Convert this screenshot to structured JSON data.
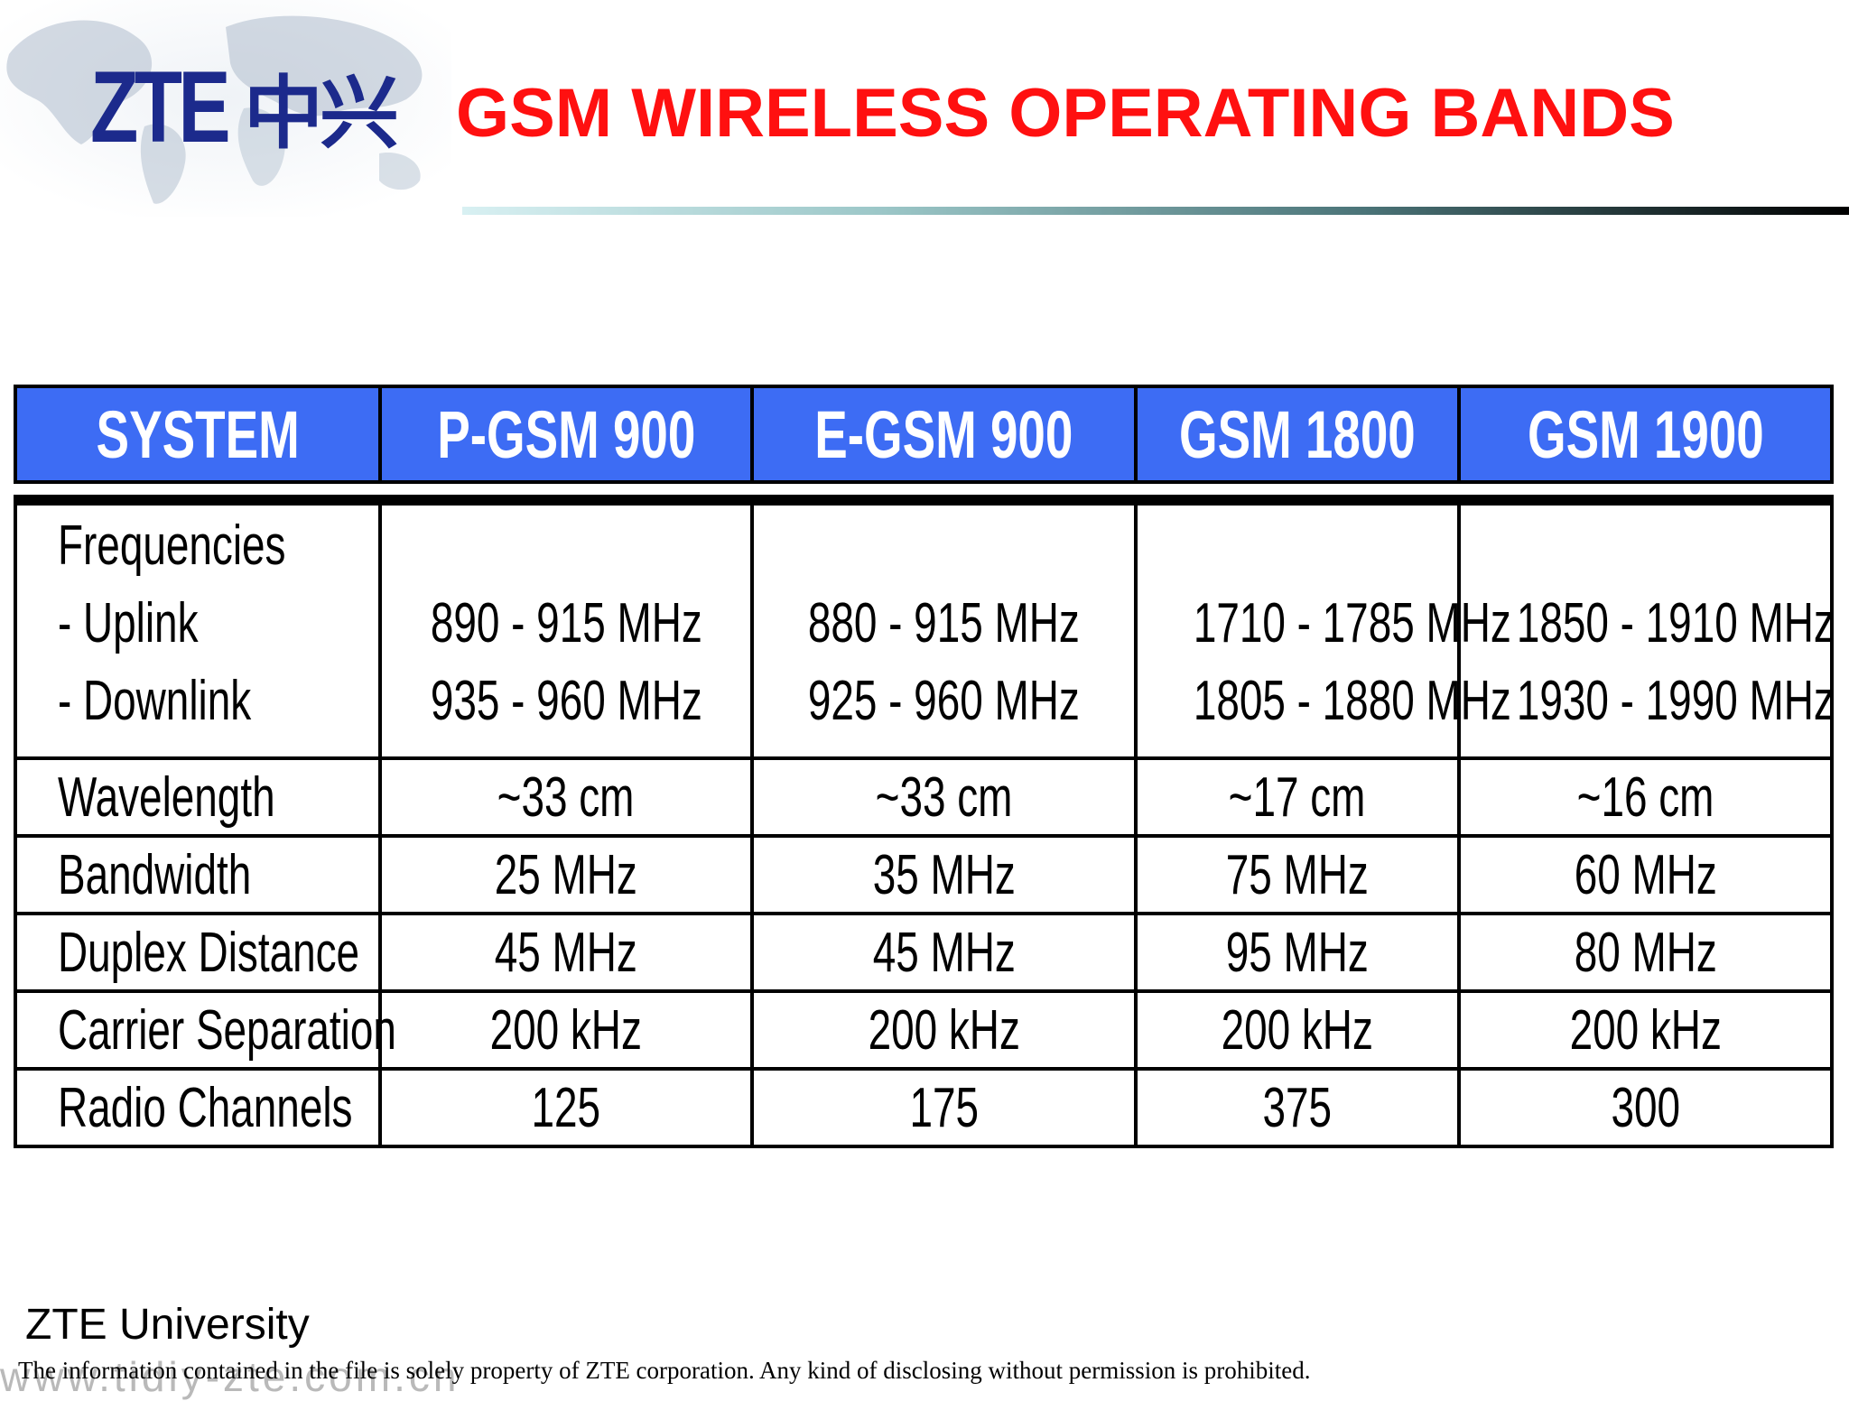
{
  "header": {
    "logo_latin": "ZTE",
    "logo_cn": "中兴",
    "title": "GSM WIRELESS OPERATING BANDS"
  },
  "table": {
    "columns": [
      "SYSTEM",
      "P-GSM 900",
      "E-GSM 900",
      "GSM 1800",
      "GSM 1900"
    ],
    "frequencies": {
      "label_lines": [
        "Frequencies",
        "- Uplink",
        "- Downlink"
      ],
      "uplink": [
        "890 - 915 MHz",
        "880 - 915 MHz",
        "1710 - 1785 MHz",
        "1850 - 1910 MHz"
      ],
      "downlink": [
        "935 - 960 MHz",
        "925 - 960 MHz",
        "1805 - 1880 MHz",
        "1930 - 1990 MHz"
      ]
    },
    "rows": [
      {
        "label": "Wavelength",
        "values": [
          "~33 cm",
          "~33 cm",
          "~17 cm",
          "~16 cm"
        ]
      },
      {
        "label": "Bandwidth",
        "values": [
          "25 MHz",
          "35 MHz",
          "75 MHz",
          "60 MHz"
        ]
      },
      {
        "label": "Duplex Distance",
        "values": [
          "45 MHz",
          "45 MHz",
          "95 MHz",
          "80 MHz"
        ]
      },
      {
        "label": "Carrier Separation",
        "values": [
          "200 kHz",
          "200 kHz",
          "200 kHz",
          "200 kHz"
        ]
      },
      {
        "label": "Radio Channels",
        "values": [
          "125",
          "175",
          "375",
          "300"
        ]
      }
    ]
  },
  "footer": {
    "title": "ZTE University",
    "watermark": "www.tidiy-zte.com.cn",
    "disclaimer": "The information contained in the file is solely property of ZTE corporation. Any kind of disclosing without permission is prohibited."
  },
  "colors": {
    "title_red": "#ff1010",
    "header_blue": "#3d6cf4",
    "logo_navy": "#1c2a8c"
  }
}
